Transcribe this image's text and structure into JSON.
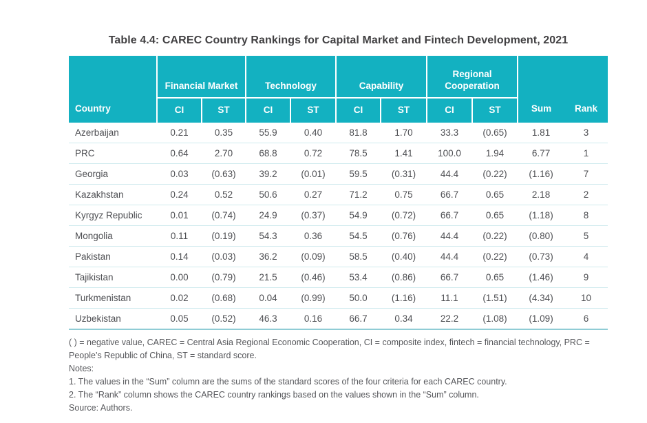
{
  "title": "Table 4.4: CAREC Country Rankings for Capital Market and Fintech Development, 2021",
  "colors": {
    "header_teal": "#13b1c1",
    "header_text": "#ffffff",
    "row_divider": "#cfeaee",
    "table_bottom_border": "#8fccd5",
    "title_text": "#414042",
    "body_text": "#4d4e52"
  },
  "table": {
    "country_header": "Country",
    "groups": [
      {
        "label": "Financial Market"
      },
      {
        "label": "Technology"
      },
      {
        "label": "Capability"
      },
      {
        "label": "Regional Cooperation"
      }
    ],
    "sub_headers": [
      "CI",
      "ST"
    ],
    "sum_header": "Sum",
    "rank_header": "Rank",
    "rows": [
      {
        "country": "Azerbaijan",
        "values": [
          "0.21",
          "0.35",
          "55.9",
          "0.40",
          "81.8",
          "1.70",
          "33.3",
          "(0.65)",
          "1.81",
          "3"
        ]
      },
      {
        "country": "PRC",
        "values": [
          "0.64",
          "2.70",
          "68.8",
          "0.72",
          "78.5",
          "1.41",
          "100.0",
          "1.94",
          "6.77",
          "1"
        ]
      },
      {
        "country": "Georgia",
        "values": [
          "0.03",
          "(0.63)",
          "39.2",
          "(0.01)",
          "59.5",
          "(0.31)",
          "44.4",
          "(0.22)",
          "(1.16)",
          "7"
        ]
      },
      {
        "country": "Kazakhstan",
        "values": [
          "0.24",
          "0.52",
          "50.6",
          "0.27",
          "71.2",
          "0.75",
          "66.7",
          "0.65",
          "2.18",
          "2"
        ]
      },
      {
        "country": "Kyrgyz Republic",
        "values": [
          "0.01",
          "(0.74)",
          "24.9",
          "(0.37)",
          "54.9",
          "(0.72)",
          "66.7",
          "0.65",
          "(1.18)",
          "8"
        ]
      },
      {
        "country": "Mongolia",
        "values": [
          "0.11",
          "(0.19)",
          "54.3",
          "0.36",
          "54.5",
          "(0.76)",
          "44.4",
          "(0.22)",
          "(0.80)",
          "5"
        ]
      },
      {
        "country": "Pakistan",
        "values": [
          "0.14",
          "(0.03)",
          "36.2",
          "(0.09)",
          "58.5",
          "(0.40)",
          "44.4",
          "(0.22)",
          "(0.73)",
          "4"
        ]
      },
      {
        "country": "Tajikistan",
        "values": [
          "0.00",
          "(0.79)",
          "21.5",
          "(0.46)",
          "53.4",
          "(0.86)",
          "66.7",
          "0.65",
          "(1.46)",
          "9"
        ]
      },
      {
        "country": "Turkmenistan",
        "values": [
          "0.02",
          "(0.68)",
          "0.04",
          "(0.99)",
          "50.0",
          "(1.16)",
          "11.1",
          "(1.51)",
          "(4.34)",
          "10"
        ]
      },
      {
        "country": "Uzbekistan",
        "values": [
          "0.05",
          "(0.52)",
          "46.3",
          "0.16",
          "66.7",
          "0.34",
          "22.2",
          "(1.08)",
          "(1.09)",
          "6"
        ]
      }
    ]
  },
  "footnotes": {
    "abbreviations": "( ) = negative value, CAREC = Central Asia Regional Economic Cooperation, CI = composite index, fintech = financial technology, PRC = People’s Republic of China, ST = standard score.",
    "notes_label": "Notes:",
    "note1": "1.  The values in the “Sum” column are the sums of the standard scores of the four criteria for each CAREC country.",
    "note2": "2.  The “Rank” column shows the CAREC country rankings based on the values shown in the “Sum” column.",
    "source": "Source: Authors."
  }
}
